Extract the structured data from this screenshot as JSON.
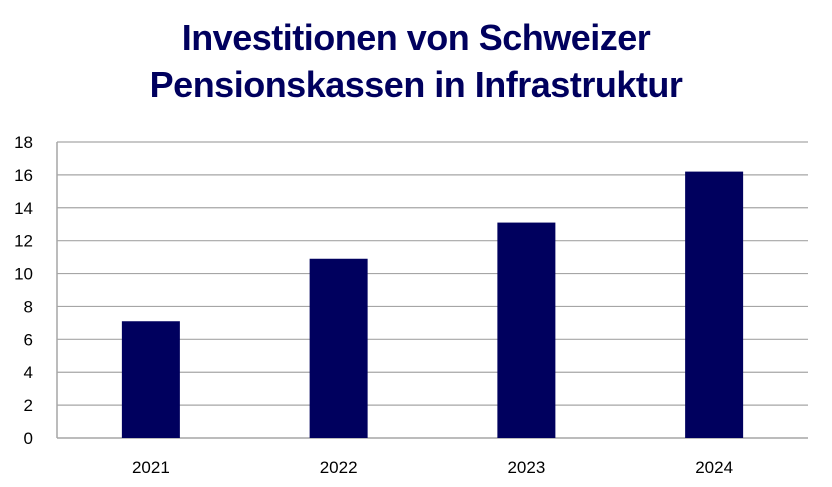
{
  "chart_data": {
    "type": "bar",
    "title_lines": [
      "Investitionen von Schweizer",
      "Pensionskassen in Infrastruktur"
    ],
    "xlabel": "",
    "ylabel": "",
    "categories": [
      "2021",
      "2022",
      "2023",
      "2024"
    ],
    "values": [
      7.1,
      10.9,
      13.1,
      16.2
    ],
    "ylim": [
      0,
      18
    ],
    "yticks": [
      0,
      2,
      4,
      6,
      8,
      10,
      12,
      14,
      16,
      18
    ],
    "grid": true,
    "legend": "none",
    "bar_color": "#00005e",
    "grid_color": "#a6a6a6"
  }
}
